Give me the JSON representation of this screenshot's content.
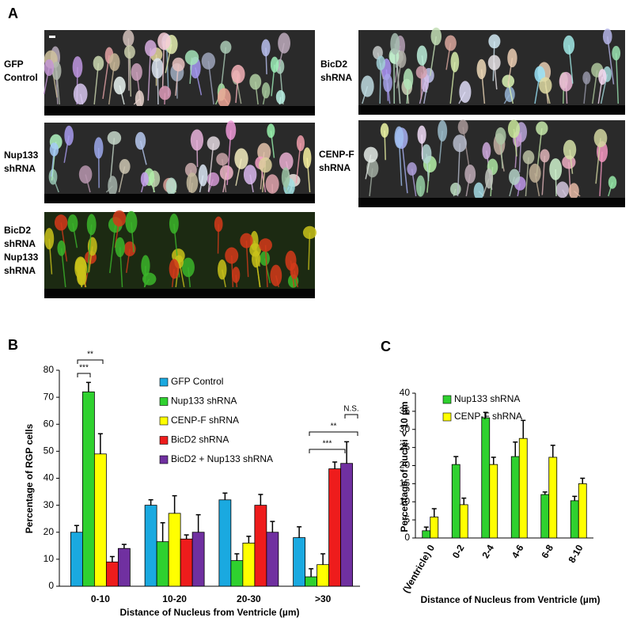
{
  "figure": {
    "panels": [
      "A",
      "B",
      "C"
    ],
    "images": [
      {
        "label": [
          "GFP",
          "Control"
        ]
      },
      {
        "label": [
          "BicD2",
          "shRNA"
        ]
      },
      {
        "label": [
          "Nup133",
          "shRNA"
        ]
      },
      {
        "label": [
          "CENP-F",
          "shRNA"
        ]
      },
      {
        "label": [
          "BicD2",
          "shRNA",
          "Nup133",
          "shRNA"
        ],
        "label_colors": [
          "#e8262a",
          "#e8262a",
          "#1db954",
          "#1db954"
        ]
      }
    ]
  },
  "chart_data": [
    {
      "type": "bar",
      "ylabel": "Percentage of RGP cells",
      "xlabel": "Distance of Nucleus from Ventricle (µm)",
      "categories": [
        "0-10",
        "10-20",
        "20-30",
        ">30"
      ],
      "series": [
        {
          "name": "GFP Control",
          "color": "#1aa9e0",
          "values": [
            20,
            30,
            32,
            18
          ],
          "errors": [
            2.5,
            2,
            2.5,
            4
          ]
        },
        {
          "name": "Nup133 shRNA",
          "color": "#2fd12f",
          "values": [
            72,
            16.5,
            9.5,
            3.5
          ],
          "errors": [
            3.5,
            7,
            2.5,
            3
          ]
        },
        {
          "name": "CENP-F shRNA",
          "color": "#ffff00",
          "values": [
            49,
            27,
            16,
            8
          ],
          "errors": [
            7.5,
            6.5,
            2.5,
            4
          ]
        },
        {
          "name": "BicD2 shRNA",
          "color": "#ee1c1c",
          "values": [
            9,
            17.5,
            30,
            43.5
          ],
          "errors": [
            2,
            1.5,
            4,
            2.5
          ]
        },
        {
          "name": "BicD2 + Nup133 shRNA",
          "color": "#7030a0",
          "values": [
            14,
            20,
            20,
            45.5
          ],
          "errors": [
            1.5,
            6.5,
            4,
            8
          ]
        }
      ],
      "annotations": [
        "**",
        "***",
        "N.S.",
        "**",
        "***"
      ],
      "ylim": [
        0,
        80
      ],
      "yticks": [
        0,
        10,
        20,
        30,
        40,
        50,
        60,
        70,
        80
      ]
    },
    {
      "type": "bar",
      "ylabel": "Percentage of nuclei < 10 µm",
      "xlabel": "Distance of Nucleus from Ventricle (µm)",
      "categories": [
        "(Ventricle) 0",
        "0-2",
        "2-4",
        "4-6",
        "6-8",
        "8-10"
      ],
      "series": [
        {
          "name": "Nup133 shRNA",
          "color": "#2fd12f",
          "values": [
            2,
            20.3,
            33.2,
            22.5,
            12,
            10.3
          ],
          "errors": [
            1,
            2.2,
            1.5,
            4,
            0.7,
            1.2
          ]
        },
        {
          "name": "CENP-F shRNA",
          "color": "#ffff00",
          "values": [
            5.8,
            9.2,
            20.3,
            27.5,
            22.3,
            15
          ],
          "errors": [
            2.3,
            1.8,
            2,
            5,
            3.3,
            1.5
          ]
        }
      ],
      "ylim": [
        0,
        40
      ],
      "yticks": [
        0,
        5,
        10,
        15,
        20,
        25,
        30,
        35,
        40
      ]
    }
  ]
}
